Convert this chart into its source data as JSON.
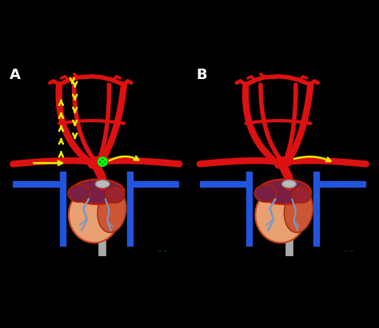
{
  "background_color": "#000000",
  "label_color": "#ffffff",
  "label_fontsize": 13,
  "artery_color": "#dd1111",
  "artery_lw_main": 6,
  "artery_lw_med": 4,
  "artery_lw_small": 2.5,
  "vein_color": "#2255dd",
  "vein_lw": 6,
  "graft_color": "#aaaaaa",
  "graft_lw": 7,
  "arrow_color": "#eeee00",
  "arrow_lw": 1.8,
  "block_fill": "#004400",
  "block_edge": "#00ff00",
  "heart_salmon": "#e8a070",
  "heart_dark_red": "#992233",
  "heart_purple": "#7a1f44",
  "heart_mid": "#cc5533",
  "sig_color": "#00aa00"
}
